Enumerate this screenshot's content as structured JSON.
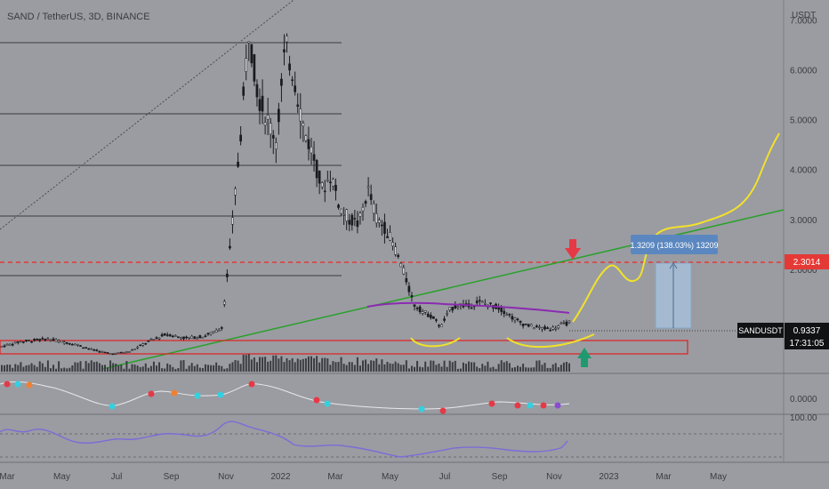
{
  "header": {
    "symbol_line": "SAND / TetherUS, 3D, BINANCE"
  },
  "axis": {
    "currency": "USDT"
  },
  "chart_data": {
    "type": "candlestick",
    "title": "SAND / TetherUS, 3D, BINANCE",
    "ylabel": "USDT",
    "y_ticks": [
      "7.0000",
      "6.0000",
      "5.0000",
      "4.0000",
      "3.0000",
      "2.0000"
    ],
    "x_ticks": [
      "Mar",
      "May",
      "Jul",
      "Sep",
      "Nov",
      "2022",
      "Mar",
      "May",
      "Jul",
      "Sep",
      "Nov",
      "2023",
      "Mar",
      "May"
    ],
    "ylim": [
      0.0,
      7.4
    ],
    "price_path": [
      {
        "t": 0,
        "v": 0.45
      },
      {
        "t": 2,
        "v": 0.55
      },
      {
        "t": 5,
        "v": 0.6
      },
      {
        "t": 8,
        "v": 0.5
      },
      {
        "t": 10,
        "v": 0.38
      },
      {
        "t": 12,
        "v": 0.3
      },
      {
        "t": 14,
        "v": 0.35
      },
      {
        "t": 16,
        "v": 0.55
      },
      {
        "t": 18,
        "v": 0.7
      },
      {
        "t": 20,
        "v": 0.62
      },
      {
        "t": 22,
        "v": 0.65
      },
      {
        "t": 24,
        "v": 0.8
      },
      {
        "t": 25,
        "v": 2.5
      },
      {
        "t": 26,
        "v": 4.5
      },
      {
        "t": 27,
        "v": 6.8
      },
      {
        "t": 28,
        "v": 5.5
      },
      {
        "t": 29,
        "v": 5.0
      },
      {
        "t": 30,
        "v": 4.6
      },
      {
        "t": 31,
        "v": 6.5
      },
      {
        "t": 32,
        "v": 5.8
      },
      {
        "t": 33,
        "v": 4.8
      },
      {
        "t": 34,
        "v": 4.3
      },
      {
        "t": 35,
        "v": 3.6
      },
      {
        "t": 36,
        "v": 3.9
      },
      {
        "t": 37,
        "v": 3.2
      },
      {
        "t": 38,
        "v": 3.0
      },
      {
        "t": 39,
        "v": 2.9
      },
      {
        "t": 40,
        "v": 3.6
      },
      {
        "t": 41,
        "v": 3.0
      },
      {
        "t": 42,
        "v": 2.8
      },
      {
        "t": 43,
        "v": 2.4
      },
      {
        "t": 44,
        "v": 1.9
      },
      {
        "t": 45,
        "v": 1.3
      },
      {
        "t": 46,
        "v": 1.15
      },
      {
        "t": 47,
        "v": 1.05
      },
      {
        "t": 48,
        "v": 0.85
      },
      {
        "t": 49,
        "v": 1.2
      },
      {
        "t": 50,
        "v": 1.3
      },
      {
        "t": 51,
        "v": 1.25
      },
      {
        "t": 52,
        "v": 1.35
      },
      {
        "t": 53,
        "v": 1.3
      },
      {
        "t": 54,
        "v": 1.25
      },
      {
        "t": 55,
        "v": 1.15
      },
      {
        "t": 56,
        "v": 1.0
      },
      {
        "t": 57,
        "v": 0.9
      },
      {
        "t": 58,
        "v": 0.85
      },
      {
        "t": 59,
        "v": 0.82
      },
      {
        "t": 60,
        "v": 0.8
      },
      {
        "t": 61,
        "v": 0.88
      },
      {
        "t": 62,
        "v": 0.93
      }
    ],
    "levels": [
      {
        "name": "resistance",
        "value": 2.3014,
        "label": "2.3014",
        "color": "#e53935"
      },
      {
        "name": "last",
        "value": 0.9337,
        "label": "0.9337"
      }
    ],
    "projection_label": "1.3209 (138.03%) 13209",
    "last_symbol": "SANDUSDT",
    "countdown": "17:31:05",
    "oscillator_tick": "0.0000",
    "rsi_tick": "100.00"
  },
  "colors": {
    "background": "#9a9ca2",
    "resistance": "#e53935",
    "forecast": "#f2e12a",
    "trend": "#2aa02a",
    "ma": "#8b2bb0",
    "up_arrow": "#1f9a6e",
    "down_arrow": "#e53945",
    "rsi": "#7b6cd6"
  }
}
